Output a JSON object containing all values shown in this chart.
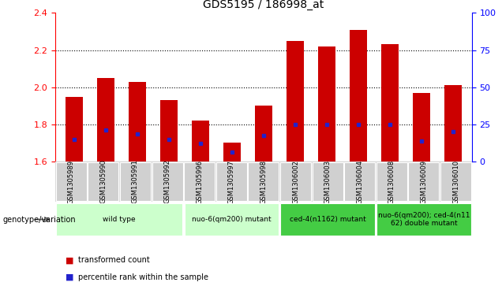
{
  "title": "GDS5195 / 186998_at",
  "samples": [
    "GSM1305989",
    "GSM1305990",
    "GSM1305991",
    "GSM1305992",
    "GSM1305996",
    "GSM1305997",
    "GSM1305998",
    "GSM1306002",
    "GSM1306003",
    "GSM1306004",
    "GSM1306008",
    "GSM1306009",
    "GSM1306010"
  ],
  "bar_bottoms": [
    1.6,
    1.6,
    1.6,
    1.6,
    1.6,
    1.6,
    1.6,
    1.6,
    1.6,
    1.6,
    1.6,
    1.6,
    1.6
  ],
  "bar_tops": [
    1.95,
    2.05,
    2.03,
    1.93,
    1.82,
    1.7,
    1.9,
    2.25,
    2.22,
    2.31,
    2.23,
    1.97,
    2.01
  ],
  "percentile_values": [
    1.72,
    1.77,
    1.75,
    1.72,
    1.7,
    1.65,
    1.74,
    1.8,
    1.8,
    1.8,
    1.8,
    1.71,
    1.76
  ],
  "ylim_left": [
    1.6,
    2.4
  ],
  "ylim_right": [
    0,
    100
  ],
  "yticks_left": [
    1.6,
    1.8,
    2.0,
    2.2,
    2.4
  ],
  "yticks_right": [
    0,
    25,
    50,
    75,
    100
  ],
  "bar_color": "#cc0000",
  "percentile_color": "#2222cc",
  "group_ranges": [
    [
      0,
      4
    ],
    [
      4,
      7
    ],
    [
      7,
      10
    ],
    [
      10,
      13
    ]
  ],
  "group_colors": [
    "#ccffcc",
    "#ccffcc",
    "#44cc44",
    "#44cc44"
  ],
  "group_labels": [
    "wild type",
    "nuo-6(qm200) mutant",
    "ced-4(n1162) mutant",
    "nuo-6(qm200); ced-4(n11\n62) double mutant"
  ],
  "legend_labels": [
    "transformed count",
    "percentile rank within the sample"
  ],
  "genotype_label": "genotype/variation",
  "title_fontsize": 10
}
